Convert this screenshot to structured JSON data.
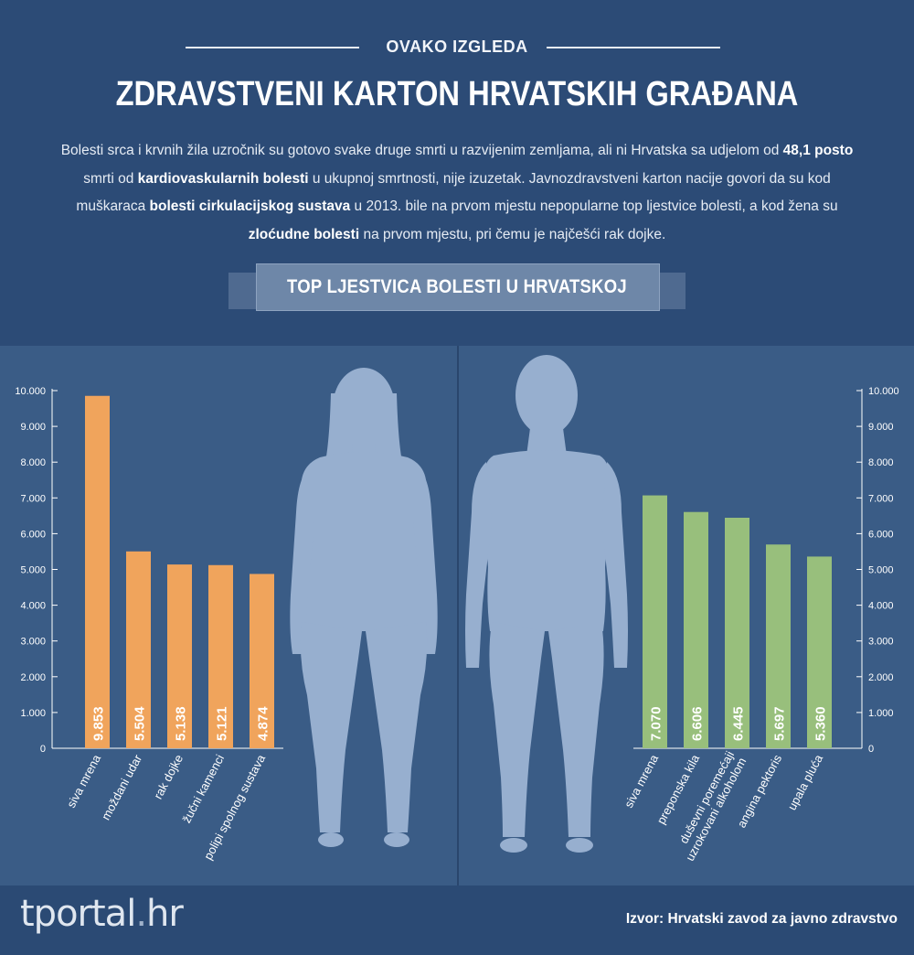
{
  "header": {
    "kicker": "OVAKO IZGLEDA",
    "title": "ZDRAVSTVENI KARTON HRVATSKIH GRAĐANA",
    "intro_parts": [
      {
        "text": "Bolesti srca i krvnih žila uzročnik su gotovo svake druge smrti u razvijenim zemljama, ali ni Hrvatska sa udjelom od ",
        "bold": false
      },
      {
        "text": "48,1 posto",
        "bold": true
      },
      {
        "text": " smrti od ",
        "bold": false
      },
      {
        "text": "kardiovaskularnih bolesti",
        "bold": true
      },
      {
        "text": " u ukupnoj smrtnosti, nije izuzetak. Javnozdravstveni karton nacije govori da su kod muškaraca ",
        "bold": false
      },
      {
        "text": "bolesti cirkulacijskog sustava",
        "bold": true
      },
      {
        "text": " u 2013. bile na prvom mjestu nepopularne top ljestvice bolesti, a kod žena su ",
        "bold": false
      },
      {
        "text": "zloćudne bolesti",
        "bold": true
      },
      {
        "text": " na prvom mjestu, pri čemu je najčešći rak dojke.",
        "bold": false
      }
    ],
    "ribbon": "TOP LJESTVICA BOLESTI U HRVATSKOJ"
  },
  "colors": {
    "women_bar": "#f0a45c",
    "men_bar": "#98bf7c",
    "silhouette": "#97afcf",
    "axis": "#ffffff"
  },
  "chart_data": [
    {
      "type": "bar",
      "series_group": "women",
      "categories": [
        "siva mrena",
        "moždani udar",
        "rak dojke",
        "žučni kamenci",
        "polipi spolnog sustava"
      ],
      "values": [
        9853,
        5504,
        5138,
        5121,
        4874
      ],
      "value_labels": [
        "9.853",
        "5.504",
        "5.138",
        "5.121",
        "4.874"
      ],
      "ylim": [
        0,
        10000
      ],
      "yticks": [
        "0",
        "1.000",
        "2.000",
        "3.000",
        "4.000",
        "5.000",
        "6.000",
        "7.000",
        "8.000",
        "9.000",
        "10.000"
      ],
      "axis_side": "left"
    },
    {
      "type": "bar",
      "series_group": "men",
      "categories": [
        "siva mrena",
        "preponska kila",
        "duševni poremećaji uzrokovani alkoholom",
        "angina pektoris",
        "upala pluća"
      ],
      "category_lines": [
        [
          "siva mrena"
        ],
        [
          "preponska kila"
        ],
        [
          "duševni poremećaji",
          "uzrokovani alkoholom"
        ],
        [
          "angina pektoris"
        ],
        [
          "upala pluća"
        ]
      ],
      "values": [
        7070,
        6606,
        6445,
        5697,
        5360
      ],
      "value_labels": [
        "7.070",
        "6.606",
        "6.445",
        "5.697",
        "5.360"
      ],
      "ylim": [
        0,
        10000
      ],
      "yticks": [
        "0",
        "1.000",
        "2.000",
        "3.000",
        "4.000",
        "5.000",
        "6.000",
        "7.000",
        "8.000",
        "9.000",
        "10.000"
      ],
      "axis_side": "right"
    }
  ],
  "footer": {
    "logo_main": "tportal",
    "logo_dot": ".",
    "logo_tld": "hr",
    "source": "Izvor: Hrvatski zavod za javno zdravstvo"
  }
}
